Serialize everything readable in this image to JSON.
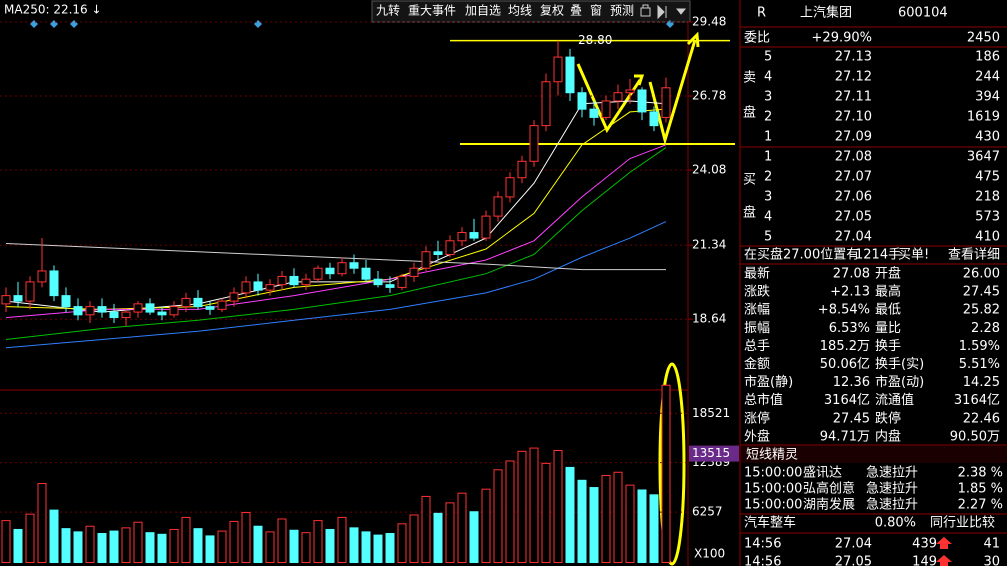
{
  "toolbar": {
    "ma250": "MA250: 22.16 ↓",
    "buttons": [
      "九转",
      "重大事件",
      "加自选",
      "均线",
      "复权",
      "叠",
      "窗",
      "预测"
    ]
  },
  "chart_data": {
    "type": "candlestick",
    "ylim": [
      16.35,
      29.99
    ],
    "yticks": [
      29.48,
      26.78,
      24.08,
      21.34,
      18.64
    ],
    "grid": true,
    "up_color": "#ff3232",
    "down_color": "#54ffff",
    "peak_line": {
      "value": 28.8,
      "label": "28.80"
    },
    "candles": [
      [
        19.2,
        19.8,
        18.9,
        19.5
      ],
      [
        19.5,
        20.0,
        19.1,
        19.3
      ],
      [
        19.3,
        20.2,
        19.0,
        20.0
      ],
      [
        20.0,
        21.6,
        19.8,
        20.4
      ],
      [
        20.4,
        20.6,
        19.3,
        19.5
      ],
      [
        19.5,
        19.8,
        18.9,
        19.1
      ],
      [
        19.1,
        19.4,
        18.6,
        18.8
      ],
      [
        18.8,
        19.3,
        18.5,
        19.1
      ],
      [
        19.1,
        19.4,
        18.7,
        18.9
      ],
      [
        18.9,
        19.2,
        18.5,
        18.7
      ],
      [
        18.7,
        19.0,
        18.4,
        18.9
      ],
      [
        18.9,
        19.3,
        18.7,
        19.2
      ],
      [
        19.2,
        19.4,
        18.8,
        18.9
      ],
      [
        18.9,
        19.1,
        18.6,
        18.8
      ],
      [
        18.8,
        19.3,
        18.7,
        19.1
      ],
      [
        19.1,
        19.6,
        18.9,
        19.4
      ],
      [
        19.4,
        19.7,
        19.0,
        19.1
      ],
      [
        19.1,
        19.3,
        18.8,
        19.0
      ],
      [
        19.0,
        19.4,
        18.9,
        19.3
      ],
      [
        19.3,
        19.8,
        19.1,
        19.6
      ],
      [
        19.6,
        20.2,
        19.4,
        20.0
      ],
      [
        20.0,
        20.3,
        19.5,
        19.7
      ],
      [
        19.7,
        20.1,
        19.5,
        19.9
      ],
      [
        19.9,
        20.4,
        19.7,
        20.2
      ],
      [
        20.2,
        20.5,
        19.8,
        19.9
      ],
      [
        19.9,
        20.3,
        19.7,
        20.1
      ],
      [
        20.1,
        20.6,
        20.0,
        20.5
      ],
      [
        20.5,
        20.7,
        20.1,
        20.3
      ],
      [
        20.3,
        20.9,
        20.2,
        20.7
      ],
      [
        20.7,
        21.0,
        20.3,
        20.5
      ],
      [
        20.5,
        20.8,
        20.0,
        20.1
      ],
      [
        20.1,
        20.4,
        19.8,
        19.9
      ],
      [
        19.9,
        20.2,
        19.6,
        19.8
      ],
      [
        19.8,
        20.3,
        19.7,
        20.2
      ],
      [
        20.2,
        20.7,
        20.0,
        20.5
      ],
      [
        20.5,
        21.3,
        20.4,
        21.1
      ],
      [
        21.1,
        21.5,
        20.8,
        21.0
      ],
      [
        21.0,
        21.7,
        20.9,
        21.5
      ],
      [
        21.5,
        22.0,
        21.3,
        21.8
      ],
      [
        21.8,
        22.3,
        21.5,
        21.6
      ],
      [
        21.6,
        22.6,
        21.5,
        22.4
      ],
      [
        22.4,
        23.3,
        22.2,
        23.1
      ],
      [
        23.1,
        24.0,
        22.9,
        23.8
      ],
      [
        23.8,
        24.6,
        23.6,
        24.4
      ],
      [
        24.4,
        25.9,
        24.2,
        25.7
      ],
      [
        25.7,
        27.6,
        25.5,
        27.3
      ],
      [
        27.3,
        28.8,
        26.8,
        28.2
      ],
      [
        28.2,
        28.5,
        26.6,
        26.9
      ],
      [
        26.9,
        27.1,
        26.0,
        26.3
      ],
      [
        26.3,
        26.6,
        25.7,
        26.0
      ],
      [
        26.0,
        26.8,
        25.9,
        26.6
      ],
      [
        26.6,
        27.2,
        26.3,
        26.9
      ],
      [
        26.9,
        27.4,
        26.5,
        27.0
      ],
      [
        27.0,
        27.1,
        25.9,
        26.2
      ],
      [
        26.2,
        26.4,
        25.5,
        25.7
      ],
      [
        26.0,
        27.45,
        25.82,
        27.08
      ]
    ],
    "ma_lines": [
      {
        "color": "#ffffff",
        "x": [
          0,
          8,
          16,
          24,
          32,
          40,
          44,
          48,
          52,
          55
        ],
        "values": [
          19.3,
          18.9,
          19.2,
          20.0,
          20.0,
          21.6,
          23.6,
          26.5,
          26.6,
          26.5
        ]
      },
      {
        "color": "#ffff00",
        "x": [
          0,
          8,
          16,
          24,
          32,
          40,
          44,
          48,
          52,
          55
        ],
        "values": [
          19.1,
          19.0,
          19.1,
          19.8,
          20.1,
          21.2,
          22.5,
          25.0,
          26.2,
          26.3
        ]
      },
      {
        "color": "#ff40ff",
        "x": [
          0,
          8,
          16,
          24,
          32,
          40,
          44,
          48,
          52,
          55
        ],
        "values": [
          18.7,
          19.0,
          19.0,
          19.5,
          20.1,
          20.8,
          21.5,
          23.1,
          24.5,
          25.0
        ]
      },
      {
        "color": "#00c000",
        "x": [
          0,
          8,
          16,
          24,
          32,
          40,
          44,
          48,
          52,
          55
        ],
        "values": [
          17.9,
          18.3,
          18.6,
          19.0,
          19.5,
          20.3,
          21.0,
          22.6,
          24.0,
          24.9
        ]
      },
      {
        "color": "#2f7fff",
        "x": [
          0,
          8,
          16,
          24,
          32,
          40,
          44,
          48,
          52,
          55
        ],
        "values": [
          17.6,
          17.9,
          18.2,
          18.6,
          19.0,
          19.6,
          20.1,
          20.9,
          21.6,
          22.2
        ]
      },
      {
        "color": "#d0d0d0",
        "x": [
          0,
          8,
          16,
          24,
          32,
          40,
          44,
          48,
          52,
          55
        ],
        "values": [
          21.4,
          21.25,
          21.1,
          20.95,
          20.8,
          20.65,
          20.55,
          20.45,
          20.45,
          20.45
        ]
      }
    ],
    "volumes": [
      5200,
      4100,
      6000,
      9800,
      6500,
      4200,
      3800,
      4500,
      3600,
      3900,
      4300,
      5000,
      3700,
      3500,
      4100,
      5600,
      4200,
      3300,
      3900,
      5100,
      6200,
      4500,
      3800,
      5400,
      4000,
      3700,
      5200,
      4100,
      5600,
      4300,
      3800,
      3400,
      3600,
      4800,
      5900,
      8200,
      6100,
      7400,
      8600,
      6300,
      9100,
      11500,
      12600,
      13800,
      14200,
      12300,
      13900,
      11800,
      10200,
      9300,
      10800,
      11200,
      9600,
      9000,
      8400,
      22000
    ],
    "volume_ylim": [
      0,
      22400
    ],
    "volume_yticks": [
      18521,
      12389,
      6257
    ],
    "volume_highlight": 13515,
    "volume_unit": "X100"
  },
  "quote": {
    "header": {
      "mark": "R",
      "name": "上汽集团",
      "code": "600104"
    },
    "ratio": {
      "label": "委比",
      "value": "+29.90%",
      "diff": "2450"
    },
    "sell": {
      "label": [
        "卖",
        "盘"
      ],
      "levels": [
        {
          "level": "5",
          "price": "27.13",
          "volume": "186"
        },
        {
          "level": "4",
          "price": "27.12",
          "volume": "244"
        },
        {
          "level": "3",
          "price": "27.11",
          "volume": "394"
        },
        {
          "level": "2",
          "price": "27.10",
          "volume": "1619"
        },
        {
          "level": "1",
          "price": "27.09",
          "volume": "430"
        }
      ]
    },
    "buy": {
      "label": [
        "买",
        "盘"
      ],
      "levels": [
        {
          "level": "1",
          "price": "27.08",
          "volume": "3647"
        },
        {
          "level": "2",
          "price": "27.07",
          "volume": "475"
        },
        {
          "level": "3",
          "price": "27.06",
          "volume": "218"
        },
        {
          "level": "4",
          "price": "27.05",
          "volume": "573"
        },
        {
          "level": "5",
          "price": "27.04",
          "volume": "410"
        }
      ]
    },
    "notice": {
      "text": "在买盘27.00位置有",
      "amount": "1214手",
      "tail": "买单!",
      "link": "查看详细"
    },
    "stats": [
      [
        {
          "label": "最新",
          "value": "27.08",
          "color": "#ff3232"
        },
        {
          "label": "开盘",
          "value": "26.00",
          "color": "#ff3232"
        }
      ],
      [
        {
          "label": "涨跌",
          "value": "+2.13",
          "color": "#ff3232"
        },
        {
          "label": "最高",
          "value": "27.45",
          "color": "#ff3232"
        }
      ],
      [
        {
          "label": "涨幅",
          "value": "+8.54%",
          "color": "#ff3232"
        },
        {
          "label": "最低",
          "value": "25.82",
          "color": "#ff3232"
        }
      ],
      [
        {
          "label": "振幅",
          "value": "6.53%",
          "color": "#ffff00"
        },
        {
          "label": "量比",
          "value": "2.28",
          "color": "#ff3232"
        }
      ],
      [
        {
          "label": "总手",
          "value": "185.2万",
          "color": "#ffff00"
        },
        {
          "label": "换手",
          "value": "1.59%",
          "color": "#ffff00"
        }
      ],
      [
        {
          "label": "金额",
          "value": "50.06亿",
          "color": "#ffff00"
        },
        {
          "label": "换手(实)",
          "value": "5.51%",
          "color": "#ffff00"
        }
      ],
      [
        {
          "label": "市盈(静)",
          "value": "12.36",
          "color": "#ffffff"
        },
        {
          "label": "市盈(动)",
          "value": "14.25",
          "color": "#ffffff"
        }
      ],
      [
        {
          "label": "总市值",
          "value": "3164亿",
          "color": "#ffff00"
        },
        {
          "label": "流通值",
          "value": "3164亿",
          "color": "#ffff00"
        }
      ],
      [
        {
          "label": "涨停",
          "value": "27.45",
          "color": "#ff3232"
        },
        {
          "label": "跌停",
          "value": "22.46",
          "color": "#00e000"
        }
      ],
      [
        {
          "label": "外盘",
          "value": "94.71万",
          "color": "#ff3232"
        },
        {
          "label": "内盘",
          "value": "90.50万",
          "color": "#00e000"
        }
      ]
    ],
    "sprite": {
      "title": "短线精灵",
      "rows": [
        [
          "15:00:00",
          "盛讯达",
          "急速拉升",
          "2.38 %"
        ],
        [
          "15:00:00",
          "弘高创意",
          "急速拉升",
          "1.85 %"
        ],
        [
          "15:00:00",
          "湖南发展",
          "急速拉升",
          "2.27 %"
        ]
      ]
    },
    "industry": {
      "name": "汽车整车",
      "change": "0.80%",
      "link": "同行业比较"
    },
    "ticks": [
      [
        "14:56",
        "27.04",
        "439",
        "41"
      ],
      [
        "14:56",
        "27.05",
        "149",
        "30"
      ]
    ]
  }
}
